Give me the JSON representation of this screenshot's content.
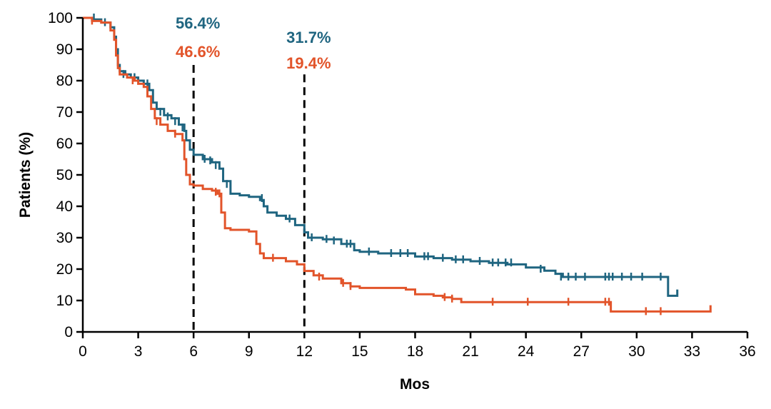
{
  "chart_data": {
    "type": "line",
    "title": "",
    "xlabel": "Mos",
    "ylabel": "Patients (%)",
    "xlim": [
      0,
      36
    ],
    "ylim": [
      0,
      100
    ],
    "xticks": [
      0,
      3,
      6,
      9,
      12,
      15,
      18,
      21,
      24,
      27,
      30,
      33,
      36
    ],
    "yticks": [
      0,
      10,
      20,
      30,
      40,
      50,
      60,
      70,
      80,
      90,
      100
    ],
    "grid": false,
    "landmark_lines": [
      6,
      12
    ],
    "annotations": [
      {
        "x": 6,
        "texts": [
          {
            "text": "56.4%",
            "series": 0
          },
          {
            "text": "46.6%",
            "series": 1
          }
        ]
      },
      {
        "x": 12,
        "texts": [
          {
            "text": "31.7%",
            "series": 0
          },
          {
            "text": "19.4%",
            "series": 1
          }
        ]
      }
    ],
    "series": [
      {
        "color": "#1f6580",
        "points": [
          [
            0,
            100
          ],
          [
            0.5,
            99.5
          ],
          [
            1,
            98.5
          ],
          [
            1.5,
            97
          ],
          [
            1.7,
            94
          ],
          [
            1.8,
            90
          ],
          [
            1.9,
            85
          ],
          [
            2.0,
            83
          ],
          [
            2.3,
            82
          ],
          [
            2.6,
            81
          ],
          [
            3.0,
            80
          ],
          [
            3.3,
            79
          ],
          [
            3.6,
            77
          ],
          [
            3.8,
            73
          ],
          [
            4.0,
            71
          ],
          [
            4.4,
            69
          ],
          [
            4.8,
            68
          ],
          [
            5.2,
            66
          ],
          [
            5.5,
            64
          ],
          [
            5.6,
            61
          ],
          [
            5.8,
            58
          ],
          [
            6.0,
            56.4
          ],
          [
            6.5,
            55
          ],
          [
            7.0,
            54
          ],
          [
            7.4,
            52
          ],
          [
            7.6,
            48
          ],
          [
            8.0,
            44
          ],
          [
            8.5,
            43.5
          ],
          [
            9.0,
            43
          ],
          [
            9.6,
            42
          ],
          [
            9.8,
            40
          ],
          [
            10.0,
            38
          ],
          [
            10.5,
            37
          ],
          [
            11.0,
            36
          ],
          [
            11.5,
            34
          ],
          [
            12.0,
            31.7
          ],
          [
            12.2,
            30
          ],
          [
            13.0,
            29.5
          ],
          [
            14.0,
            28
          ],
          [
            14.7,
            26
          ],
          [
            15.0,
            25.5
          ],
          [
            16.0,
            25
          ],
          [
            17.0,
            25
          ],
          [
            18.0,
            24
          ],
          [
            19.0,
            23.5
          ],
          [
            20.0,
            23
          ],
          [
            21.0,
            22.5
          ],
          [
            22.0,
            22
          ],
          [
            23.0,
            21.5
          ],
          [
            24.0,
            20.5
          ],
          [
            25.0,
            19.5
          ],
          [
            25.6,
            18.5
          ],
          [
            26.0,
            17.5
          ],
          [
            27.0,
            17.5
          ],
          [
            28.0,
            17.5
          ],
          [
            30.0,
            17.5
          ],
          [
            31.6,
            17.5
          ],
          [
            31.7,
            11.5
          ],
          [
            32.2,
            11.5
          ],
          [
            32.2,
            13.5
          ]
        ],
        "censors": [
          [
            0.6,
            100
          ],
          [
            1.2,
            98.5
          ],
          [
            1.5,
            97
          ],
          [
            2.2,
            82
          ],
          [
            2.8,
            81
          ],
          [
            3.5,
            79
          ],
          [
            4.2,
            70
          ],
          [
            4.6,
            68.5
          ],
          [
            5.0,
            67
          ],
          [
            5.4,
            65
          ],
          [
            6.6,
            55
          ],
          [
            6.9,
            54.5
          ],
          [
            7.2,
            53
          ],
          [
            7.8,
            47
          ],
          [
            9.7,
            42.5
          ],
          [
            11.2,
            36
          ],
          [
            12.4,
            30
          ],
          [
            13.2,
            29.5
          ],
          [
            13.6,
            29
          ],
          [
            14.3,
            28
          ],
          [
            14.5,
            28
          ],
          [
            15.5,
            25.5
          ],
          [
            16.7,
            25
          ],
          [
            17.2,
            25
          ],
          [
            17.6,
            25
          ],
          [
            18.5,
            24
          ],
          [
            18.7,
            24
          ],
          [
            19.5,
            23.5
          ],
          [
            20.2,
            23
          ],
          [
            20.6,
            23
          ],
          [
            21.5,
            22.5
          ],
          [
            22.2,
            22
          ],
          [
            22.5,
            22
          ],
          [
            22.9,
            22
          ],
          [
            23.2,
            22
          ],
          [
            24.8,
            20
          ],
          [
            25.9,
            17.5
          ],
          [
            26.3,
            17.5
          ],
          [
            26.7,
            17.5
          ],
          [
            27.2,
            17.5
          ],
          [
            28.3,
            17.5
          ],
          [
            28.5,
            17.5
          ],
          [
            28.7,
            17.5
          ],
          [
            29.2,
            17.5
          ],
          [
            29.7,
            17.5
          ],
          [
            30.3,
            17.5
          ],
          [
            31.3,
            17.5
          ]
        ]
      },
      {
        "color": "#e2542a",
        "points": [
          [
            0,
            100
          ],
          [
            0.5,
            99
          ],
          [
            1.0,
            98.5
          ],
          [
            1.5,
            96
          ],
          [
            1.7,
            93
          ],
          [
            1.8,
            88
          ],
          [
            1.9,
            84
          ],
          [
            2.0,
            82
          ],
          [
            2.4,
            81
          ],
          [
            2.8,
            80
          ],
          [
            3.0,
            79
          ],
          [
            3.3,
            78
          ],
          [
            3.5,
            75
          ],
          [
            3.7,
            71
          ],
          [
            3.9,
            68
          ],
          [
            4.2,
            66
          ],
          [
            4.6,
            64
          ],
          [
            5.0,
            63
          ],
          [
            5.4,
            61
          ],
          [
            5.5,
            55
          ],
          [
            5.6,
            50
          ],
          [
            5.8,
            47
          ],
          [
            6.0,
            46.6
          ],
          [
            6.5,
            45.5
          ],
          [
            7.0,
            45
          ],
          [
            7.3,
            44
          ],
          [
            7.5,
            38
          ],
          [
            7.7,
            33
          ],
          [
            8.0,
            32.5
          ],
          [
            9.0,
            32
          ],
          [
            9.4,
            28
          ],
          [
            9.6,
            25
          ],
          [
            9.8,
            23.5
          ],
          [
            10.5,
            23.5
          ],
          [
            11.0,
            22.5
          ],
          [
            11.6,
            21.5
          ],
          [
            12.0,
            19.4
          ],
          [
            12.5,
            18
          ],
          [
            13.0,
            17
          ],
          [
            14.0,
            15.5
          ],
          [
            14.5,
            14.5
          ],
          [
            15.0,
            14
          ],
          [
            16.0,
            14
          ],
          [
            17.0,
            14
          ],
          [
            17.5,
            13.5
          ],
          [
            18.0,
            12
          ],
          [
            19.0,
            11.5
          ],
          [
            19.5,
            11
          ],
          [
            20.0,
            10.5
          ],
          [
            20.5,
            9.5
          ],
          [
            21.0,
            9.5
          ],
          [
            24.0,
            9.5
          ],
          [
            27.0,
            9.5
          ],
          [
            28.3,
            9.5
          ],
          [
            28.6,
            6.5
          ],
          [
            30.0,
            6.5
          ],
          [
            32.0,
            6.5
          ],
          [
            34.0,
            6.5
          ],
          [
            34.0,
            8.5
          ]
        ],
        "censors": [
          [
            0.5,
            99
          ],
          [
            2.7,
            80
          ],
          [
            4.0,
            67
          ],
          [
            5.0,
            63
          ],
          [
            7.2,
            44.5
          ],
          [
            7.4,
            44
          ],
          [
            10.3,
            23.5
          ],
          [
            12.8,
            17.5
          ],
          [
            14.1,
            15.5
          ],
          [
            14.5,
            14.5
          ],
          [
            19.6,
            11
          ],
          [
            20.0,
            10.5
          ],
          [
            22.2,
            9.5
          ],
          [
            24.1,
            9.5
          ],
          [
            26.3,
            9.5
          ],
          [
            28.3,
            9.5
          ],
          [
            28.5,
            9.5
          ],
          [
            30.5,
            6.5
          ],
          [
            31.3,
            6.5
          ]
        ]
      }
    ]
  }
}
